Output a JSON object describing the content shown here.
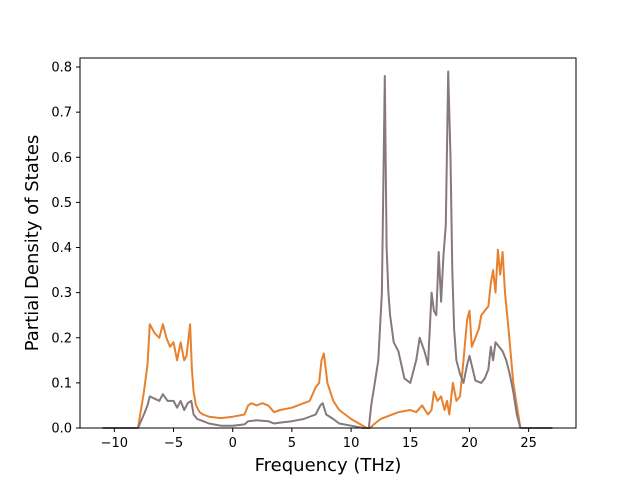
{
  "chart_data": {
    "type": "line",
    "title": "",
    "xlabel": "Frequency (THz)",
    "ylabel": "Partial Density of States",
    "xlim": [
      -12.9,
      29.0
    ],
    "ylim": [
      0.0,
      0.82
    ],
    "xticks": [
      -10,
      -5,
      0,
      5,
      10,
      15,
      20,
      25
    ],
    "yticks": [
      0.0,
      0.1,
      0.2,
      0.3,
      0.4,
      0.5,
      0.6,
      0.7,
      0.8
    ],
    "xtick_labels": [
      "−10",
      "−5",
      "0",
      "5",
      "10",
      "15",
      "20",
      "25"
    ],
    "ytick_labels": [
      "0.0",
      "0.1",
      "0.2",
      "0.3",
      "0.4",
      "0.5",
      "0.6",
      "0.7",
      "0.8"
    ],
    "grid": false,
    "legend": "none",
    "series": [
      {
        "color": "#e8812e",
        "x": [
          -11,
          -8,
          -7.5,
          -7.2,
          -7.0,
          -6.8,
          -6.6,
          -6.2,
          -5.9,
          -5.6,
          -5.3,
          -5.0,
          -4.7,
          -4.4,
          -4.1,
          -3.9,
          -3.6,
          -3.45,
          -3.3,
          -3.1,
          -2.8,
          -2.5,
          -2.0,
          -1.0,
          0.0,
          1.0,
          1.3,
          1.6,
          2.0,
          2.5,
          3.0,
          3.5,
          4.0,
          5.0,
          6.0,
          6.5,
          7.0,
          7.3,
          7.5,
          7.7,
          8.0,
          8.5,
          9.0,
          10.0,
          11.0,
          11.3,
          11.6,
          12.0,
          12.5,
          13.0,
          14.0,
          15.0,
          15.5,
          16.0,
          16.5,
          16.8,
          17.0,
          17.3,
          17.6,
          17.9,
          18.1,
          18.3,
          18.6,
          18.9,
          19.2,
          19.5,
          19.8,
          20.0,
          20.2,
          20.5,
          20.8,
          21.0,
          21.3,
          21.6,
          21.8,
          22.0,
          22.2,
          22.4,
          22.6,
          22.8,
          23.0,
          23.3,
          23.7,
          24.0,
          24.3,
          27.0
        ],
        "y": [
          0.0,
          0.0,
          0.08,
          0.14,
          0.23,
          0.22,
          0.21,
          0.2,
          0.23,
          0.2,
          0.18,
          0.19,
          0.15,
          0.19,
          0.15,
          0.16,
          0.23,
          0.13,
          0.08,
          0.05,
          0.035,
          0.03,
          0.025,
          0.022,
          0.025,
          0.03,
          0.05,
          0.055,
          0.05,
          0.055,
          0.05,
          0.035,
          0.04,
          0.045,
          0.055,
          0.06,
          0.09,
          0.1,
          0.15,
          0.165,
          0.1,
          0.06,
          0.04,
          0.02,
          0.005,
          0.0,
          0.0,
          0.01,
          0.02,
          0.025,
          0.035,
          0.04,
          0.035,
          0.05,
          0.03,
          0.04,
          0.08,
          0.06,
          0.07,
          0.04,
          0.06,
          0.03,
          0.1,
          0.06,
          0.07,
          0.15,
          0.24,
          0.26,
          0.18,
          0.2,
          0.22,
          0.25,
          0.26,
          0.27,
          0.32,
          0.35,
          0.3,
          0.395,
          0.34,
          0.39,
          0.3,
          0.22,
          0.1,
          0.05,
          0.0,
          0.0
        ]
      },
      {
        "color": "#86787c",
        "x": [
          -11,
          -8,
          -7.5,
          -7.2,
          -7.0,
          -6.6,
          -6.2,
          -5.9,
          -5.5,
          -5.0,
          -4.7,
          -4.4,
          -4.1,
          -3.8,
          -3.5,
          -3.3,
          -3.0,
          -2.5,
          -2.0,
          -1.0,
          0.0,
          1.0,
          1.3,
          2.0,
          3.0,
          3.5,
          4.0,
          5.0,
          6.0,
          7.0,
          7.4,
          7.6,
          7.9,
          8.5,
          9.0,
          10.0,
          11.0,
          11.5,
          11.7,
          12.0,
          12.3,
          12.6,
          12.85,
          13.0,
          13.15,
          13.3,
          13.6,
          14.0,
          14.5,
          15.0,
          15.5,
          15.8,
          16.2,
          16.5,
          16.8,
          17.0,
          17.2,
          17.4,
          17.6,
          17.8,
          18.0,
          18.2,
          18.4,
          18.55,
          18.7,
          18.9,
          19.2,
          19.5,
          19.8,
          20.0,
          20.5,
          21.0,
          21.3,
          21.6,
          21.8,
          22.0,
          22.2,
          22.5,
          22.8,
          23.1,
          23.4,
          23.7,
          24.0,
          24.3,
          27.0
        ],
        "y": [
          0.0,
          0.0,
          0.03,
          0.05,
          0.07,
          0.065,
          0.06,
          0.075,
          0.06,
          0.06,
          0.045,
          0.06,
          0.04,
          0.055,
          0.06,
          0.03,
          0.02,
          0.015,
          0.01,
          0.005,
          0.005,
          0.008,
          0.015,
          0.017,
          0.015,
          0.01,
          0.012,
          0.015,
          0.02,
          0.03,
          0.05,
          0.055,
          0.03,
          0.02,
          0.01,
          0.005,
          0.0,
          0.0,
          0.05,
          0.1,
          0.15,
          0.3,
          0.78,
          0.4,
          0.3,
          0.25,
          0.19,
          0.17,
          0.11,
          0.1,
          0.15,
          0.2,
          0.17,
          0.14,
          0.3,
          0.26,
          0.25,
          0.39,
          0.28,
          0.38,
          0.45,
          0.79,
          0.6,
          0.35,
          0.22,
          0.15,
          0.12,
          0.1,
          0.14,
          0.16,
          0.105,
          0.1,
          0.11,
          0.13,
          0.18,
          0.15,
          0.19,
          0.18,
          0.17,
          0.15,
          0.12,
          0.08,
          0.03,
          0.0,
          0.0
        ]
      }
    ]
  }
}
